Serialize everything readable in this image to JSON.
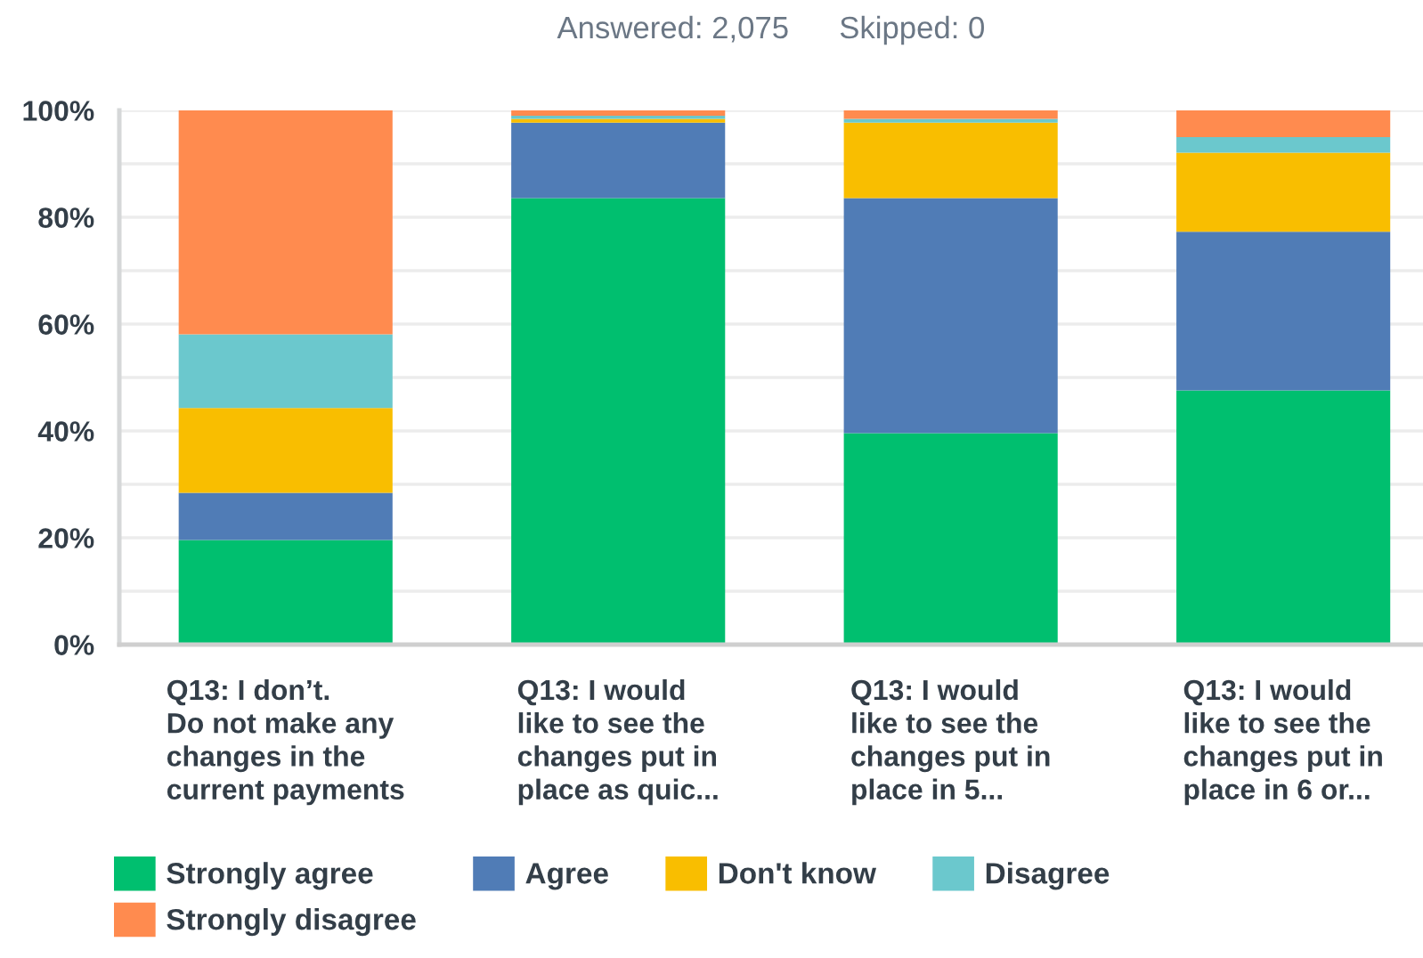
{
  "chart_data": {
    "type": "bar",
    "stacked": true,
    "annotations": [
      "Answered: 2,075",
      "Skipped: 0"
    ],
    "categories": [
      "Q13: I don’t.\nDo not make any\nchanges in the\ncurrent payments",
      "Q13: I would\nlike to see the\nchanges put in\nplace as quic...",
      "Q13: I would\nlike to see the\nchanges put in\nplace in 5...",
      "Q13: I would\nlike to see the\nchanges put in\nplace in 6 or..."
    ],
    "series": [
      {
        "name": "Strongly agree",
        "color": "#00bf6f",
        "values": [
          19.6,
          83.6,
          39.6,
          47.6
        ]
      },
      {
        "name": "Agree",
        "color": "#507cb6",
        "values": [
          8.8,
          14.1,
          44.0,
          29.7
        ]
      },
      {
        "name": "Don't know",
        "color": "#f9be00",
        "values": [
          15.9,
          0.7,
          14.1,
          14.8
        ]
      },
      {
        "name": "Disagree",
        "color": "#6bc8cd",
        "values": [
          13.8,
          0.6,
          0.7,
          2.9
        ]
      },
      {
        "name": "Strongly disagree",
        "color": "#ff8b4f",
        "values": [
          41.9,
          1.0,
          1.6,
          5.0
        ]
      }
    ],
    "ylim": [
      0,
      100
    ],
    "yticks": [
      {
        "value": 0,
        "label": "0%"
      },
      {
        "value": 10,
        "label": null
      },
      {
        "value": 20,
        "label": "20%"
      },
      {
        "value": 30,
        "label": null
      },
      {
        "value": 40,
        "label": "40%"
      },
      {
        "value": 50,
        "label": null
      },
      {
        "value": 60,
        "label": "60%"
      },
      {
        "value": 70,
        "label": null
      },
      {
        "value": 80,
        "label": "80%"
      },
      {
        "value": 90,
        "label": null
      },
      {
        "value": 100,
        "label": "100%"
      }
    ],
    "grid": "y",
    "legend": "bottom"
  }
}
